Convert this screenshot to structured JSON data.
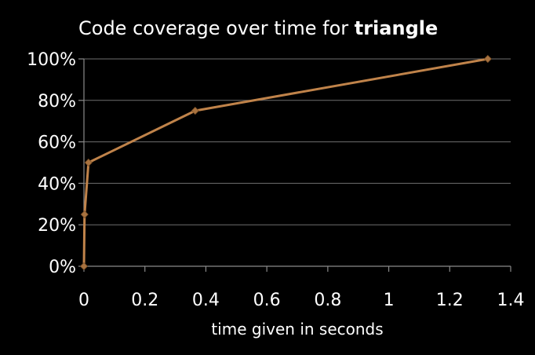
{
  "chart_data": {
    "type": "line",
    "title": "Code coverage over time for ",
    "title_bold": "triangle",
    "xlabel": "time given in seconds",
    "ylabel": "",
    "xlim": [
      0,
      1.4
    ],
    "ylim": [
      0,
      100
    ],
    "x_ticks": [
      0,
      0.2,
      0.4,
      0.6,
      0.8,
      1.0,
      1.2,
      1.4
    ],
    "x_tick_labels": [
      "0",
      "0.2",
      "0.4",
      "0.6",
      "0.8",
      "1",
      "1.2",
      "1.4"
    ],
    "y_ticks": [
      0,
      20,
      40,
      60,
      80,
      100
    ],
    "y_tick_labels": [
      "0%",
      "20%",
      "40%",
      "60%",
      "80%",
      "100%"
    ],
    "grid": "horizontal",
    "legend": "none",
    "series": [
      {
        "x": [
          0.0,
          0.002,
          0.015,
          0.365,
          1.325
        ],
        "values": [
          0,
          25,
          50,
          75,
          100
        ]
      }
    ],
    "colors": {
      "background": "#000000",
      "series": "#c0834a",
      "marker": "#a8723f",
      "gridline": "#6e6e6e",
      "axis": "#8a8a8a",
      "text": "#ffffff"
    }
  }
}
